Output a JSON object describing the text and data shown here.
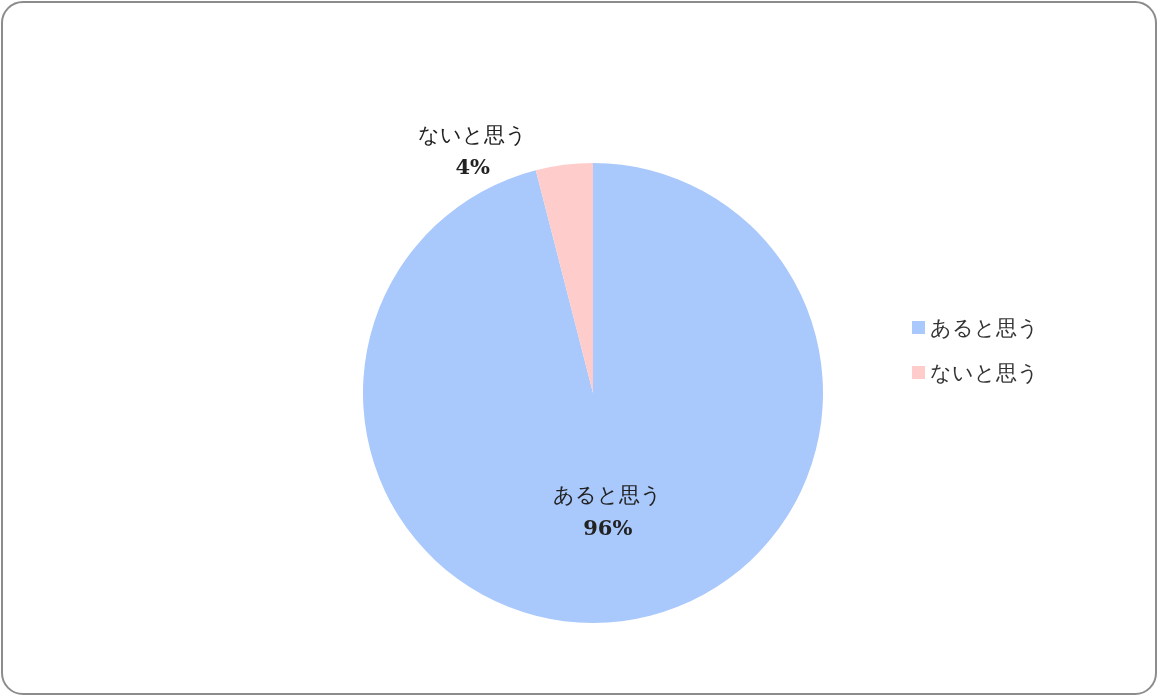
{
  "chart_data": {
    "type": "pie",
    "categories": [
      "あると思う",
      "ないと思う"
    ],
    "values": [
      96,
      4
    ],
    "colors": [
      "#a9c8fb",
      "#ffcccc"
    ],
    "value_labels": [
      "96%",
      "4%"
    ],
    "legend": "right"
  }
}
